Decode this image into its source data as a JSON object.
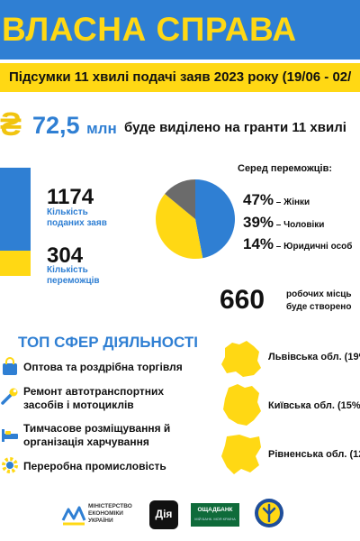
{
  "header": {
    "title": "ВЛАСНА СПРАВА",
    "subtitle": "Підсумки 11 хвилі подачі заяв 2023 року (19/06 - 02/"
  },
  "grant": {
    "currency_icon": "₴",
    "amount": "72,5",
    "unit": "млн",
    "text": "буде виділено на гранти 11 хвилі"
  },
  "stats": {
    "applications_value": "1174",
    "applications_label_1": "Кількість",
    "applications_label_2": "поданих заяв",
    "winners_value": "304",
    "winners_label_1": "Кількість",
    "winners_label_2": "переможців"
  },
  "winners": {
    "title": "Серед переможців:",
    "groups": [
      {
        "pct": "47%",
        "label": " – Жінки",
        "value": 47,
        "color": "#2f7fd3"
      },
      {
        "pct": "39%",
        "label": " – Чоловіки",
        "value": 39,
        "color": "#ffd814"
      },
      {
        "pct": "14%",
        "label": " – Юридичні особ",
        "value": 14,
        "color": "#6b6b6b"
      }
    ]
  },
  "jobs": {
    "value": "660",
    "line1": "робочих місць",
    "line2": "буде створено"
  },
  "top_spheres": {
    "title": "ТОП СФЕР ДІЯЛЬНОСТІ",
    "items": [
      {
        "line1": "Оптова та роздрібна торгівля",
        "line2": "",
        "icon": "shopping-bag-icon"
      },
      {
        "line1": "Ремонт автотранспортних",
        "line2": "засобів і мотоциклів",
        "icon": "wrench-icon"
      },
      {
        "line1": "Тимчасове розміщування й",
        "line2": "організація харчування",
        "icon": "bed-icon"
      },
      {
        "line1": "Переробна промисловість",
        "line2": "",
        "icon": "gear-icon"
      }
    ]
  },
  "regions": [
    {
      "label": "Львівська обл. (19%"
    },
    {
      "label": "Київська обл. (15%"
    },
    {
      "label": "Рівненська обл. (12"
    }
  ],
  "footer": {
    "mineco_1": "МІНІСТЕРСТВО",
    "mineco_2": "ЕКОНОМІКИ",
    "mineco_3": "УКРАЇНИ",
    "diia": "Дія",
    "oschad": "ОЩАДБАНК",
    "oschad_sub": "МІЙ БАНК. МОЯ КРАЇНА"
  },
  "colors": {
    "blue": "#2f7fd3",
    "yellow": "#ffd814",
    "gray": "#6b6b6b"
  }
}
